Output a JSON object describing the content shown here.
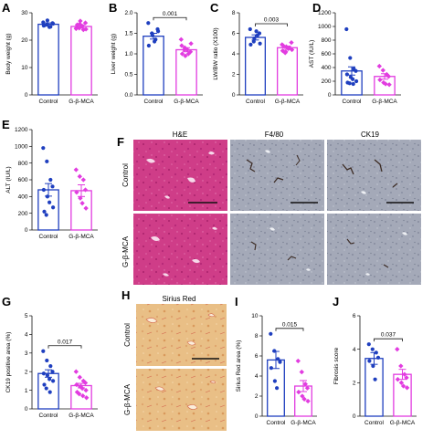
{
  "colors": {
    "control": "#1f3fbf",
    "treated": "#e23ce0"
  },
  "micrograph_panel": {
    "letter": "F",
    "titles": [
      "H&E",
      "F4/80",
      "CK19"
    ],
    "rows": [
      "Control",
      "G-β-MCA"
    ]
  },
  "sirius_panel": {
    "letter": "H",
    "title": "Sirius Red",
    "rows": [
      "Control",
      "G-β-MCA"
    ]
  },
  "chart_data": [
    {
      "id": "A",
      "letter": "A",
      "type": "bar",
      "categories": [
        "Control",
        "G-β-MCA"
      ],
      "ylabel": "Body weight (g)",
      "ylim": [
        0,
        30
      ],
      "yticks": [
        "0",
        "10",
        "20",
        "30"
      ],
      "values": [
        25.8,
        25.0
      ],
      "errors": [
        0.5,
        0.6
      ],
      "points": [
        [
          26.5,
          25.6,
          24.9,
          26.2,
          25.3,
          27.2,
          24.8,
          26.0,
          25.4
        ],
        [
          24.2,
          25.9,
          23.8,
          26.3,
          24.6,
          27.0,
          25.1,
          24.0,
          25.6,
          24.4
        ]
      ],
      "pvalue": ""
    },
    {
      "id": "B",
      "letter": "B",
      "type": "bar",
      "categories": [
        "Control",
        "G-β-MCA"
      ],
      "ylabel": "Liver weight (g)",
      "ylim": [
        0,
        2.0
      ],
      "yticks": [
        "0.0",
        "0.5",
        "1.0",
        "1.5",
        "2.0"
      ],
      "values": [
        1.43,
        1.1
      ],
      "errors": [
        0.07,
        0.05
      ],
      "points": [
        [
          1.75,
          1.5,
          1.35,
          1.6,
          1.2,
          1.45,
          1.3,
          1.55
        ],
        [
          1.35,
          1.15,
          1.0,
          1.05,
          1.2,
          0.95,
          1.1,
          1.25,
          1.0,
          1.1
        ]
      ],
      "pvalue": "0.001"
    },
    {
      "id": "C",
      "letter": "C",
      "type": "bar",
      "categories": [
        "Control",
        "G-β-MCA"
      ],
      "ylabel": "LW/BW ratio (X100)",
      "ylim": [
        0,
        8
      ],
      "yticks": [
        "0",
        "2",
        "4",
        "6",
        "8"
      ],
      "values": [
        5.6,
        4.6
      ],
      "errors": [
        0.25,
        0.15
      ],
      "points": [
        [
          6.4,
          5.2,
          5.8,
          6.0,
          4.9,
          5.5,
          6.2,
          5.0
        ],
        [
          4.9,
          4.2,
          4.6,
          5.1,
          4.3,
          4.7,
          4.5,
          4.4,
          4.8,
          4.1
        ]
      ],
      "pvalue": "0.003"
    },
    {
      "id": "D",
      "letter": "D",
      "type": "bar",
      "categories": [
        "Control",
        "G-β-MCA"
      ],
      "ylabel": "AST (IU/L)",
      "ylim": [
        0,
        1200
      ],
      "yticks": [
        "0",
        "200",
        "400",
        "600",
        "800",
        "1000",
        "1200"
      ],
      "values": [
        350,
        270
      ],
      "errors": [
        60,
        40
      ],
      "points": [
        [
          960,
          540,
          380,
          350,
          300,
          260,
          230,
          200,
          180,
          170,
          160
        ],
        [
          420,
          360,
          300,
          270,
          220,
          180,
          160,
          150
        ]
      ],
      "pvalue": ""
    },
    {
      "id": "E",
      "letter": "E",
      "type": "bar",
      "categories": [
        "Control",
        "G-β-MCA"
      ],
      "ylabel": "ALT (IU/L)",
      "ylim": [
        0,
        1200
      ],
      "yticks": [
        "0",
        "200",
        "400",
        "600",
        "800",
        "1000",
        "1200"
      ],
      "values": [
        480,
        470
      ],
      "errors": [
        75,
        70
      ],
      "points": [
        [
          980,
          820,
          600,
          520,
          480,
          400,
          330,
          270,
          220,
          180
        ],
        [
          720,
          640,
          600,
          480,
          450,
          380,
          320,
          260
        ]
      ],
      "pvalue": ""
    },
    {
      "id": "G",
      "letter": "G",
      "type": "bar",
      "categories": [
        "Control",
        "G-β-MCA"
      ],
      "ylabel": "CK19 positive area (%)",
      "ylim": [
        0,
        5
      ],
      "yticks": [
        "0",
        "1",
        "2",
        "3",
        "4",
        "5"
      ],
      "values": [
        1.9,
        1.25
      ],
      "errors": [
        0.2,
        0.12
      ],
      "points": [
        [
          3.1,
          2.6,
          2.3,
          2.0,
          1.9,
          1.8,
          1.6,
          1.5,
          1.3,
          1.1,
          0.9
        ],
        [
          2.0,
          1.7,
          1.5,
          1.4,
          1.3,
          1.2,
          1.1,
          1.0,
          0.9,
          0.8,
          0.7,
          0.6
        ]
      ],
      "pvalue": "0.017"
    },
    {
      "id": "I",
      "letter": "I",
      "type": "bar",
      "categories": [
        "Control",
        "G-β-MCA"
      ],
      "ylabel": "Sirius Red area (%)",
      "ylim": [
        0,
        10
      ],
      "yticks": [
        "0",
        "2",
        "4",
        "6",
        "8",
        "10"
      ],
      "values": [
        5.6,
        3.0
      ],
      "errors": [
        0.85,
        0.55
      ],
      "points": [
        [
          8.2,
          6.5,
          5.7,
          5.4,
          4.8,
          3.5,
          2.8
        ],
        [
          5.5,
          4.4,
          3.2,
          2.8,
          2.4,
          2.0,
          1.7,
          1.5
        ]
      ],
      "pvalue": "0.015"
    },
    {
      "id": "J",
      "letter": "J",
      "type": "bar",
      "categories": [
        "Control",
        "G-β-MCA"
      ],
      "ylabel": "Fibrosis score",
      "ylim": [
        0,
        6
      ],
      "yticks": [
        "0",
        "2",
        "4",
        "6"
      ],
      "values": [
        3.45,
        2.5
      ],
      "errors": [
        0.35,
        0.3
      ],
      "points": [
        [
          4.3,
          4.0,
          3.8,
          3.5,
          3.3,
          3.0,
          2.2
        ],
        [
          4.0,
          3.0,
          2.5,
          2.3,
          2.2,
          2.0,
          1.8,
          1.7
        ]
      ],
      "pvalue": "0.037"
    }
  ]
}
